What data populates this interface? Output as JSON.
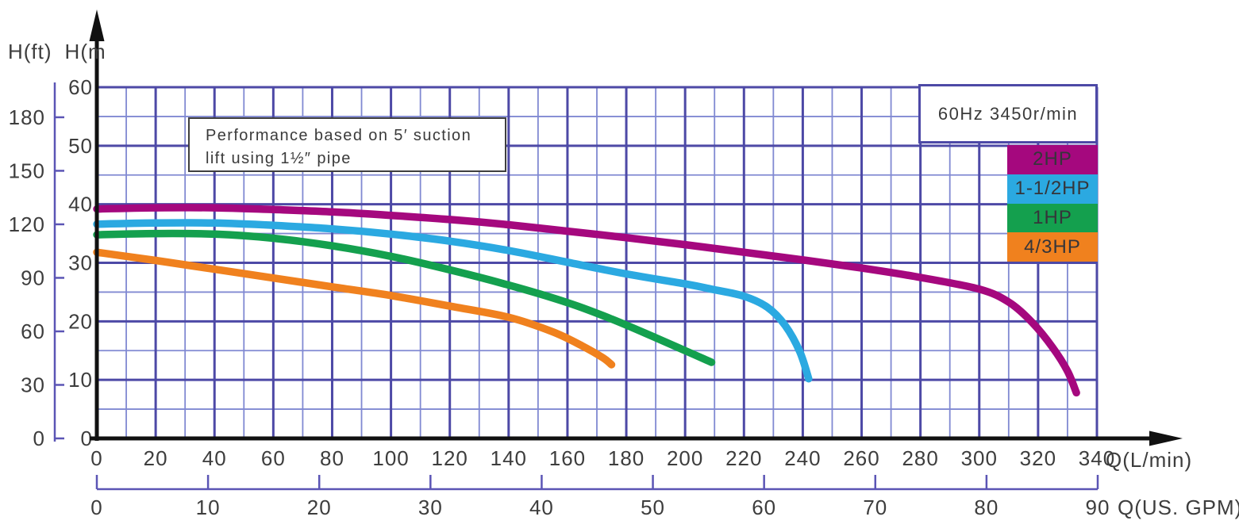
{
  "title_area": {
    "y_axis_title_ft": "H(ft)",
    "y_axis_title_m": "H(m"
  },
  "annotation_box": {
    "line1": "Performance based on 5′  suction",
    "line2": "lift using   1½″  pipe"
  },
  "freq_label": "60Hz 3450r/min",
  "axis_unit_labels": {
    "lmin": "Q(L/min)",
    "gpm": "Q(US. GPM)"
  },
  "legend": {
    "items": [
      {
        "label": "2HP",
        "color": "#a5087e"
      },
      {
        "label": "1-1/2HP",
        "color": "#2ba9e1"
      },
      {
        "label": "1HP",
        "color": "#14a04e"
      },
      {
        "label": "4/3HP",
        "color": "#f0811e"
      }
    ]
  },
  "colors": {
    "grid_major": "#4d49a6",
    "grid_minor": "#8089d2",
    "scale_purple": "#5b55b5",
    "axis_black": "#111111",
    "text": "#3d3d3d"
  },
  "chart_data": {
    "type": "line",
    "title": "",
    "subtitle": "60Hz 3450r/min",
    "note": "Performance based on 5' suction lift using 1 1/2\" pipe",
    "grid": {
      "visible": true,
      "minor_x_step_lmin": 10,
      "major_x_step_lmin": 20,
      "minor_y_step_m": 5,
      "major_y_step_m": 10
    },
    "legend_position": "top-right",
    "x_primary": {
      "label": "Q(L/min)",
      "range": [
        0,
        340
      ],
      "ticks": [
        0,
        20,
        40,
        60,
        80,
        100,
        120,
        140,
        160,
        180,
        200,
        220,
        240,
        260,
        280,
        300,
        320,
        340
      ]
    },
    "x_secondary": {
      "label": "Q(US. GPM)",
      "range": [
        0,
        90
      ],
      "ticks": [
        0,
        10,
        20,
        30,
        40,
        50,
        60,
        70,
        80,
        90
      ]
    },
    "y_primary": {
      "label": "H(m)",
      "range": [
        0,
        60
      ],
      "ticks": [
        0,
        10,
        20,
        30,
        40,
        50,
        60
      ]
    },
    "y_secondary": {
      "label": "H(ft)",
      "range": [
        0,
        180
      ],
      "ticks": [
        0,
        30,
        60,
        90,
        120,
        150,
        180
      ]
    },
    "series": [
      {
        "name": "4/3HP",
        "color": "#f0811e",
        "x_unit": "L/min",
        "y_unit": "m",
        "points": [
          [
            0,
            31.8
          ],
          [
            20,
            30.4
          ],
          [
            40,
            28.9
          ],
          [
            60,
            27.4
          ],
          [
            80,
            25.9
          ],
          [
            100,
            24.4
          ],
          [
            120,
            22.6
          ],
          [
            140,
            20.7
          ],
          [
            155,
            18.2
          ],
          [
            165,
            15.8
          ],
          [
            172,
            13.8
          ],
          [
            175,
            12.6
          ]
        ]
      },
      {
        "name": "1HP",
        "color": "#14a04e",
        "x_unit": "L/min",
        "y_unit": "m",
        "points": [
          [
            0,
            34.8
          ],
          [
            20,
            35.0
          ],
          [
            40,
            34.9
          ],
          [
            60,
            34.2
          ],
          [
            80,
            32.9
          ],
          [
            100,
            31.1
          ],
          [
            120,
            28.8
          ],
          [
            140,
            26.2
          ],
          [
            160,
            23.2
          ],
          [
            175,
            20.4
          ],
          [
            190,
            17.2
          ],
          [
            200,
            15.0
          ],
          [
            209,
            13.0
          ]
        ]
      },
      {
        "name": "1-1/2HP",
        "color": "#2ba9e1",
        "x_unit": "L/min",
        "y_unit": "m",
        "points": [
          [
            0,
            36.6
          ],
          [
            20,
            36.8
          ],
          [
            40,
            36.8
          ],
          [
            60,
            36.4
          ],
          [
            80,
            35.8
          ],
          [
            100,
            34.9
          ],
          [
            120,
            33.7
          ],
          [
            140,
            32.1
          ],
          [
            160,
            30.1
          ],
          [
            180,
            28.1
          ],
          [
            200,
            26.4
          ],
          [
            210,
            25.4
          ],
          [
            220,
            24.3
          ],
          [
            228,
            22.4
          ],
          [
            234,
            19.3
          ],
          [
            239,
            14.8
          ],
          [
            242,
            10.2
          ]
        ]
      },
      {
        "name": "2HP",
        "color": "#a5087e",
        "x_unit": "L/min",
        "y_unit": "m",
        "points": [
          [
            0,
            39.2
          ],
          [
            20,
            39.4
          ],
          [
            40,
            39.4
          ],
          [
            60,
            39.1
          ],
          [
            80,
            38.7
          ],
          [
            100,
            38.1
          ],
          [
            120,
            37.4
          ],
          [
            140,
            36.5
          ],
          [
            160,
            35.4
          ],
          [
            180,
            34.3
          ],
          [
            200,
            33.1
          ],
          [
            220,
            31.8
          ],
          [
            240,
            30.5
          ],
          [
            260,
            29.1
          ],
          [
            280,
            27.5
          ],
          [
            300,
            25.5
          ],
          [
            310,
            23.3
          ],
          [
            318,
            19.8
          ],
          [
            325,
            15.5
          ],
          [
            330,
            11.5
          ],
          [
            333,
            7.8
          ]
        ]
      }
    ]
  }
}
